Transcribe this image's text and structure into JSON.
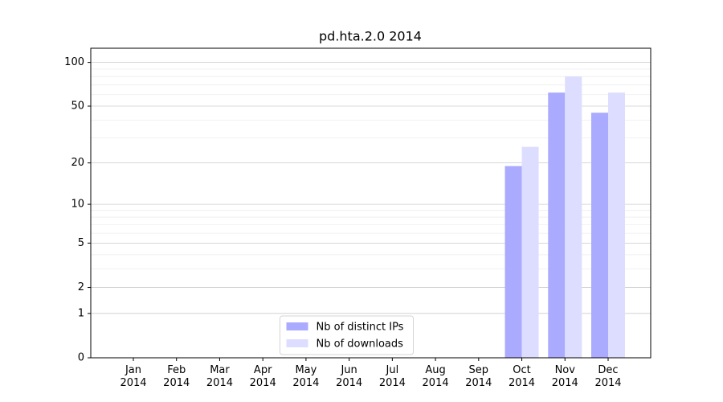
{
  "chart_data": {
    "type": "bar",
    "title": "pd.hta.2.0 2014",
    "categories": [
      "Jan\n2014",
      "Feb\n2014",
      "Mar\n2014",
      "Apr\n2014",
      "May\n2014",
      "Jun\n2014",
      "Jul\n2014",
      "Aug\n2014",
      "Sep\n2014",
      "Oct\n2014",
      "Nov\n2014",
      "Dec\n2014"
    ],
    "series": [
      {
        "name": "Nb of distinct IPs",
        "color": "#aaaaff",
        "values": [
          0,
          0,
          0,
          0,
          0,
          0,
          0,
          0,
          0,
          19,
          62,
          45
        ]
      },
      {
        "name": "Nb of downloads",
        "color": "#ddddff",
        "values": [
          0,
          0,
          0,
          0,
          0,
          0,
          0,
          0,
          0,
          26,
          80,
          62
        ]
      }
    ],
    "yscale": "log1p",
    "ylim": [
      0,
      125
    ],
    "yticks": [
      0,
      1,
      2,
      5,
      10,
      20,
      50,
      100
    ],
    "minor_yticks": [
      3,
      4,
      6,
      7,
      8,
      9,
      30,
      40,
      60,
      70,
      80,
      90
    ],
    "grid": true,
    "legend": "lower center"
  }
}
